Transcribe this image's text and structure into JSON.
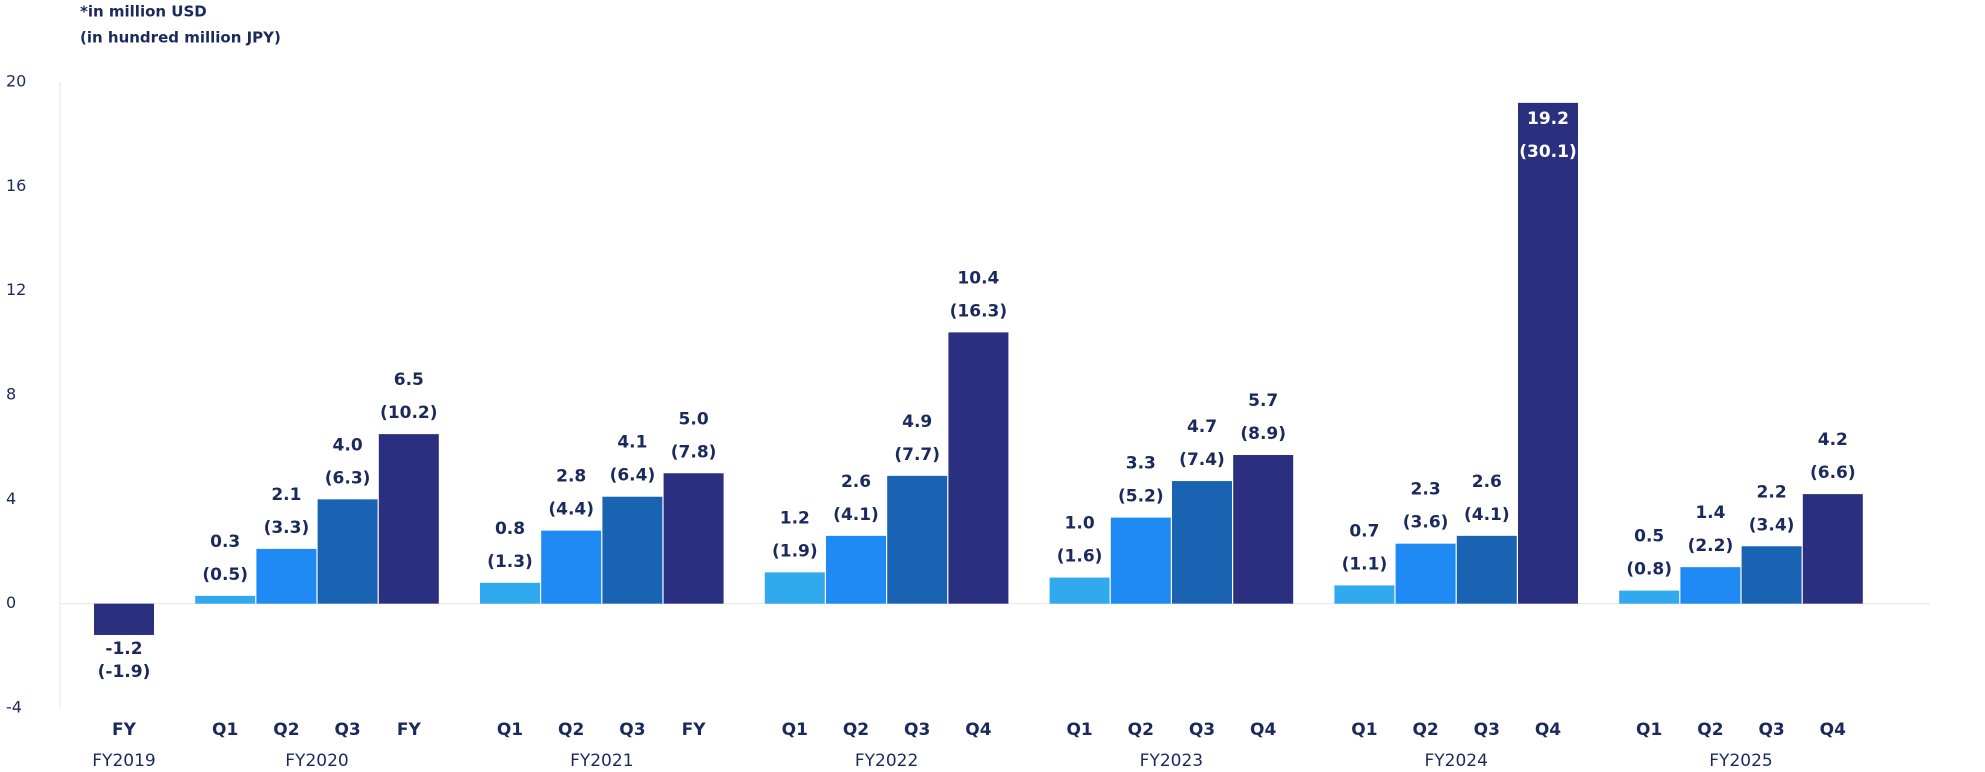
{
  "chart_data": {
    "type": "bar",
    "notes": [
      "*in million USD",
      "(in hundred million JPY)"
    ],
    "ylim": [
      -4,
      20
    ],
    "yticks": [
      20,
      16,
      12,
      8,
      4,
      0,
      -4
    ],
    "groups": [
      {
        "name": "FY2019",
        "categories": [
          "FY"
        ],
        "values": [
          -1.2
        ],
        "jpy_labels": [
          "(-1.9)"
        ],
        "colors": [
          "#2b2f80"
        ]
      },
      {
        "name": "FY2020",
        "categories": [
          "Q1",
          "Q2",
          "Q3",
          "FY"
        ],
        "values": [
          0.3,
          2.1,
          4.0,
          6.5
        ],
        "value_labels": [
          "0.3",
          "2.1",
          "4.0",
          "6.5"
        ],
        "jpy_labels": [
          "(0.5)",
          "(3.3)",
          "(6.3)",
          "(10.2)"
        ],
        "colors": [
          "#31a9ee",
          "#1f8af3",
          "#1a62b2",
          "#2b2f80"
        ]
      },
      {
        "name": "FY2021",
        "categories": [
          "Q1",
          "Q2",
          "Q3",
          "FY"
        ],
        "values": [
          0.8,
          2.8,
          4.1,
          5.0
        ],
        "value_labels": [
          "0.8",
          "2.8",
          "4.1",
          "5.0"
        ],
        "jpy_labels": [
          "(1.3)",
          "(4.4)",
          "(6.4)",
          "(7.8)"
        ],
        "colors": [
          "#31a9ee",
          "#1f8af3",
          "#1a62b2",
          "#2b2f80"
        ]
      },
      {
        "name": "FY2022",
        "categories": [
          "Q1",
          "Q2",
          "Q3",
          "Q4"
        ],
        "values": [
          1.2,
          2.6,
          4.9,
          10.4
        ],
        "jpy_labels": [
          "(1.9)",
          "(4.1)",
          "(7.7)",
          "(16.3)"
        ],
        "colors": [
          "#31a9ee",
          "#1f8af3",
          "#1a62b2",
          "#2b2f80"
        ]
      },
      {
        "name": "FY2023",
        "categories": [
          "Q1",
          "Q2",
          "Q3",
          "Q4"
        ],
        "values": [
          1.0,
          3.3,
          4.7,
          5.7
        ],
        "value_labels": [
          "1.0",
          "3.3",
          "4.7",
          "5.7"
        ],
        "jpy_labels": [
          "(1.6)",
          "(5.2)",
          "(7.4)",
          "(8.9)"
        ],
        "colors": [
          "#31a9ee",
          "#1f8af3",
          "#1a62b2",
          "#2b2f80"
        ]
      },
      {
        "name": "FY2024",
        "categories": [
          "Q1",
          "Q2",
          "Q3",
          "Q4"
        ],
        "values": [
          0.7,
          2.3,
          2.6,
          19.2
        ],
        "jpy_labels": [
          "(1.1)",
          "(3.6)",
          "(4.1)",
          "(30.1)"
        ],
        "colors": [
          "#31a9ee",
          "#1f8af3",
          "#1a62b2",
          "#2b2f80"
        ]
      },
      {
        "name": "FY2025",
        "categories": [
          "Q1",
          "Q2",
          "Q3",
          "Q4"
        ],
        "values": [
          0.5,
          1.4,
          2.2,
          4.2
        ],
        "jpy_labels": [
          "(0.8)",
          "(2.2)",
          "(3.4)",
          "(6.6)"
        ],
        "colors": [
          "#31a9ee",
          "#1f8af3",
          "#1a62b2",
          "#2b2f80"
        ]
      }
    ]
  }
}
